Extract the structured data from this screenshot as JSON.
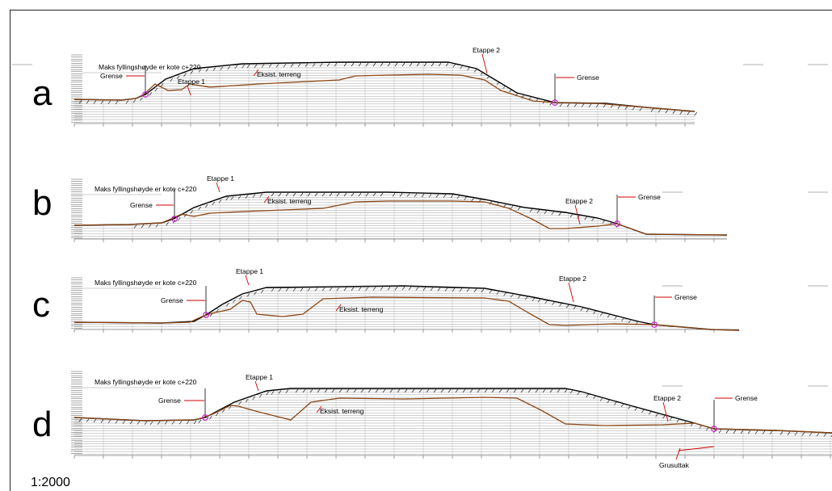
{
  "scale_label": "1:2000",
  "colors": {
    "fill_line": "#000000",
    "terrain": "#8b4513",
    "callout": "#d00000",
    "marker": "#d020d0"
  },
  "panels": [
    {
      "letter": "a",
      "max_fill_label": "Maks fyllingshøyde er kote c+220",
      "grense_left": "Grense",
      "grense_right": "Grense",
      "etappe1": "Etappe 1",
      "etappe2": "Etappe 2",
      "terrain_label": "Eksist. terreng"
    },
    {
      "letter": "b",
      "max_fill_label": "Maks fyllingshøyde er kote c+220",
      "grense_left": "Grense",
      "grense_right": "Grense",
      "etappe1": "Etappe 1",
      "etappe2": "Etappe 2",
      "terrain_label": "Eksist. terreng"
    },
    {
      "letter": "c",
      "max_fill_label": "Maks fyllingshøyde er kote c+220",
      "grense_left": "Grense",
      "grense_right": "Grense",
      "etappe1": "Etappe 1",
      "etappe2": "Etappe 2",
      "terrain_label": "Eksist. terreng"
    },
    {
      "letter": "d",
      "max_fill_label": "Maks fyllingshøyde er kote c+220",
      "grense_left": "Grense",
      "grense_right": "Grense",
      "etappe1": "Etappe 1",
      "etappe2": "Etappe 2",
      "terrain_label": "Eksist. terreng",
      "extra_label": "Grusuttak"
    }
  ]
}
